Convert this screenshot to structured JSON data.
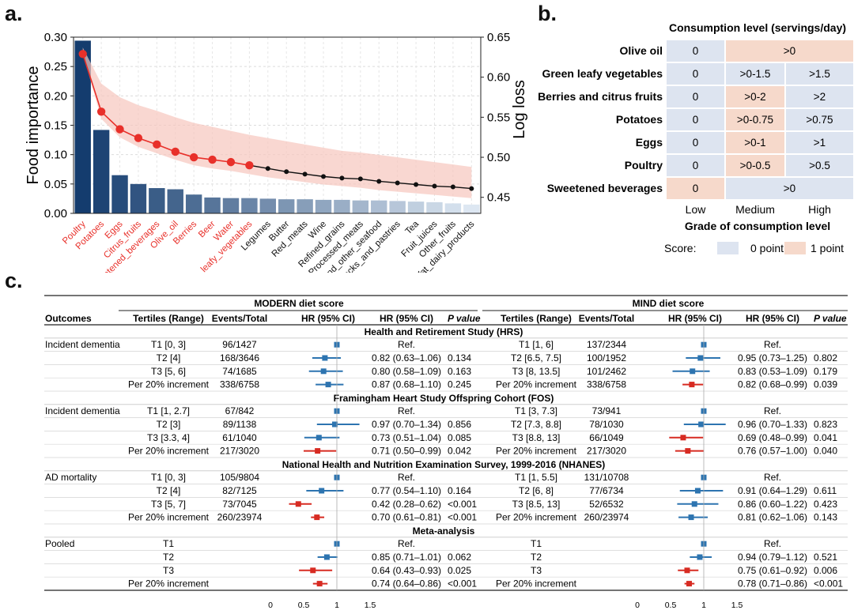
{
  "panel_labels": {
    "a": "a.",
    "b": "b.",
    "c": "c."
  },
  "chart_data": [
    {
      "type": "bar",
      "title": "",
      "ylabel": "Food importance",
      "y2label": "Log loss",
      "ylim": [
        0,
        0.3
      ],
      "y_ticks": [
        "0.00",
        "0.05",
        "0.10",
        "0.15",
        "0.20",
        "0.25",
        "0.30"
      ],
      "y2lim": [
        0.43,
        0.65
      ],
      "y2_ticks": [
        "0.45",
        "0.50",
        "0.55",
        "0.60",
        "0.65"
      ],
      "categories": [
        "Poultry",
        "Potatoes",
        "Eggs",
        "Citrus_fruits",
        "Sweetened_beverages",
        "Olive_oil",
        "Berries",
        "Beer",
        "Water",
        "Green_leafy_vegetables",
        "Legumes",
        "Butter",
        "Red_meats",
        "Wine",
        "Refined_grains",
        "Processed_meats",
        "Fish_and_other_seafood",
        "Snacks_and_pastries",
        "Tea",
        "Fruit_juices",
        "Other_fruits",
        "High-fat_dairy_products"
      ],
      "highlighted_count": 10,
      "values": [
        0.294,
        0.142,
        0.065,
        0.05,
        0.043,
        0.041,
        0.032,
        0.027,
        0.026,
        0.026,
        0.025,
        0.024,
        0.024,
        0.023,
        0.023,
        0.022,
        0.022,
        0.021,
        0.02,
        0.019,
        0.017,
        0.015
      ],
      "log_loss": [
        0.629,
        0.557,
        0.535,
        0.524,
        0.516,
        0.507,
        0.5,
        0.497,
        0.494,
        0.49,
        0.486,
        0.482,
        0.479,
        0.476,
        0.474,
        0.473,
        0.47,
        0.468,
        0.466,
        0.464,
        0.463,
        0.461
      ],
      "log_loss_ci": [
        [
          0.63,
          0.637
        ],
        [
          0.548,
          0.592
        ],
        [
          0.525,
          0.575
        ],
        [
          0.513,
          0.565
        ],
        [
          0.505,
          0.558
        ],
        [
          0.497,
          0.55
        ],
        [
          0.49,
          0.543
        ],
        [
          0.486,
          0.538
        ],
        [
          0.483,
          0.533
        ],
        [
          0.479,
          0.528
        ],
        [
          0.475,
          0.524
        ],
        [
          0.472,
          0.52
        ],
        [
          0.469,
          0.516
        ],
        [
          0.466,
          0.512
        ],
        [
          0.464,
          0.508
        ],
        [
          0.462,
          0.506
        ],
        [
          0.459,
          0.503
        ],
        [
          0.457,
          0.5
        ],
        [
          0.455,
          0.497
        ],
        [
          0.453,
          0.494
        ],
        [
          0.451,
          0.491
        ],
        [
          0.449,
          0.488
        ]
      ],
      "colors": {
        "highlight": "#e8302a",
        "band": "#f7c6bd",
        "line_tail": "#111111"
      }
    },
    {
      "type": "table",
      "title": "Consumption level (servings/day)",
      "xlabel": "Grade of consumption level",
      "column_labels": [
        "Low",
        "Medium",
        "High"
      ],
      "rows": [
        {
          "label": "Olive oil",
          "cells": [
            {
              "text": "0",
              "score": 0,
              "span": 1
            },
            {
              "text": ">0",
              "score": 1,
              "span": 2
            }
          ]
        },
        {
          "label": "Green leafy vegetables",
          "cells": [
            {
              "text": "0",
              "score": 0,
              "span": 1
            },
            {
              "text": ">0-1.5",
              "score": 0,
              "span": 1
            },
            {
              "text": ">1.5",
              "score": 0,
              "span": 1
            }
          ]
        },
        {
          "label": "Berries and citrus fruits",
          "cells": [
            {
              "text": "0",
              "score": 0,
              "span": 1
            },
            {
              "text": ">0-2",
              "score": 1,
              "span": 1
            },
            {
              "text": ">2",
              "score": 0,
              "span": 1
            }
          ]
        },
        {
          "label": "Potatoes",
          "cells": [
            {
              "text": "0",
              "score": 0,
              "span": 1
            },
            {
              "text": ">0-0.75",
              "score": 1,
              "span": 1
            },
            {
              "text": ">0.75",
              "score": 0,
              "span": 1
            }
          ]
        },
        {
          "label": "Eggs",
          "cells": [
            {
              "text": "0",
              "score": 0,
              "span": 1
            },
            {
              "text": ">0-1",
              "score": 1,
              "span": 1
            },
            {
              "text": ">1",
              "score": 0,
              "span": 1
            }
          ]
        },
        {
          "label": "Poultry",
          "cells": [
            {
              "text": "0",
              "score": 0,
              "span": 1
            },
            {
              "text": ">0-0.5",
              "score": 1,
              "span": 1
            },
            {
              "text": ">0.5",
              "score": 0,
              "span": 1
            }
          ]
        },
        {
          "label": "Sweetened beverages",
          "cells": [
            {
              "text": "0",
              "score": 1,
              "span": 1
            },
            {
              "text": ">0",
              "score": 0,
              "span": 2
            }
          ]
        }
      ],
      "legend": {
        "title": "Score:",
        "items": [
          {
            "label": "0 point",
            "color": "#dde4f0"
          },
          {
            "label": "1 point",
            "color": "#f6d9cb"
          }
        ]
      }
    },
    {
      "type": "table",
      "subtype": "forest",
      "x_ticks": [
        "0",
        "0.5",
        "1",
        "1.5"
      ],
      "x_domain": [
        0,
        1.5
      ],
      "colors": {
        "blue": "#2d74b0",
        "red": "#d72b22"
      },
      "groups": [
        {
          "name": "MODERN diet score",
          "columns": [
            "Tertiles (Range)",
            "Events/Total",
            "HR (95% CI)",
            "HR (95% CI)",
            "P value"
          ]
        },
        {
          "name": "MIND diet score",
          "columns": [
            "Tertiles (Range)",
            "Events/Total",
            "HR (95% CI)",
            "HR (95% CI)",
            "P value"
          ]
        }
      ],
      "outcomes_header": "Outcomes",
      "sections": [
        {
          "title": "Health and Retirement Study (HRS)",
          "rows": [
            {
              "outcome": "Incident dementia",
              "L": {
                "tertile": "T1 [0, 3]",
                "events": "96/1427",
                "hr_text": "Ref.",
                "p": "",
                "hr": 1,
                "lo": 1,
                "hi": 1,
                "sig": false
              },
              "R": {
                "tertile": "T1 [1, 6]",
                "events": "137/2344",
                "hr_text": "Ref.",
                "p": "",
                "hr": 1,
                "lo": 1,
                "hi": 1,
                "sig": false
              }
            },
            {
              "outcome": "",
              "L": {
                "tertile": "T2 [4]",
                "events": "168/3646",
                "hr_text": "0.82 (0.63–1.06)",
                "p": "0.134",
                "hr": 0.82,
                "lo": 0.63,
                "hi": 1.06,
                "sig": false
              },
              "R": {
                "tertile": "T2 [6.5, 7.5]",
                "events": "100/1952",
                "hr_text": "0.95 (0.73–1.25)",
                "p": "0.802",
                "hr": 0.95,
                "lo": 0.73,
                "hi": 1.25,
                "sig": false
              }
            },
            {
              "outcome": "",
              "L": {
                "tertile": "T3 [5, 6]",
                "events": "74/1685",
                "hr_text": "0.80 (0.58–1.09)",
                "p": "0.163",
                "hr": 0.8,
                "lo": 0.58,
                "hi": 1.09,
                "sig": false
              },
              "R": {
                "tertile": "T3 [8, 13.5]",
                "events": "101/2462",
                "hr_text": "0.83 (0.53–1.09)",
                "p": "0.179",
                "hr": 0.83,
                "lo": 0.53,
                "hi": 1.09,
                "sig": false
              }
            },
            {
              "outcome": "",
              "L": {
                "tertile": "Per 20% increment",
                "events": "338/6758",
                "hr_text": "0.87 (0.68–1.10)",
                "p": "0.245",
                "hr": 0.87,
                "lo": 0.68,
                "hi": 1.1,
                "sig": false
              },
              "R": {
                "tertile": "Per 20% increment",
                "events": "338/6758",
                "hr_text": "0.82 (0.68–0.99)",
                "p": "0.039",
                "hr": 0.82,
                "lo": 0.68,
                "hi": 0.99,
                "sig": true
              }
            }
          ]
        },
        {
          "title": "Framingham Heart Study Offspring Cohort (FOS)",
          "rows": [
            {
              "outcome": "Incident dementia",
              "L": {
                "tertile": "T1 [1, 2.7]",
                "events": "67/842",
                "hr_text": "Ref.",
                "p": "",
                "hr": 1,
                "lo": 1,
                "hi": 1,
                "sig": false
              },
              "R": {
                "tertile": "T1 [3, 7.3]",
                "events": "73/941",
                "hr_text": "Ref.",
                "p": "",
                "hr": 1,
                "lo": 1,
                "hi": 1,
                "sig": false
              }
            },
            {
              "outcome": "",
              "L": {
                "tertile": "T2 [3]",
                "events": "89/1138",
                "hr_text": "0.97 (0.70–1.34)",
                "p": "0.856",
                "hr": 0.97,
                "lo": 0.7,
                "hi": 1.34,
                "sig": false
              },
              "R": {
                "tertile": "T2 [7.3, 8.8]",
                "events": "78/1030",
                "hr_text": "0.96 (0.70–1.33)",
                "p": "0.823",
                "hr": 0.96,
                "lo": 0.7,
                "hi": 1.33,
                "sig": false
              }
            },
            {
              "outcome": "",
              "L": {
                "tertile": "T3 [3.3, 4]",
                "events": "61/1040",
                "hr_text": "0.73 (0.51–1.04)",
                "p": "0.085",
                "hr": 0.73,
                "lo": 0.51,
                "hi": 1.04,
                "sig": false
              },
              "R": {
                "tertile": "T3 [8.8, 13]",
                "events": "66/1049",
                "hr_text": "0.69 (0.48–0.99)",
                "p": "0.041",
                "hr": 0.69,
                "lo": 0.48,
                "hi": 0.99,
                "sig": true
              }
            },
            {
              "outcome": "",
              "L": {
                "tertile": "Per 20% increment",
                "events": "217/3020",
                "hr_text": "0.71 (0.50–0.99)",
                "p": "0.042",
                "hr": 0.71,
                "lo": 0.5,
                "hi": 0.99,
                "sig": true
              },
              "R": {
                "tertile": "Per 20% increment",
                "events": "217/3020",
                "hr_text": "0.76 (0.57–1.00)",
                "p": "0.040",
                "hr": 0.76,
                "lo": 0.57,
                "hi": 1.0,
                "sig": true
              }
            }
          ]
        },
        {
          "title": "National Health and Nutrition Examination Survey, 1999-2016 (NHANES)",
          "rows": [
            {
              "outcome": "AD mortality",
              "L": {
                "tertile": "T1 [0, 3]",
                "events": "105/9804",
                "hr_text": "Ref.",
                "p": "",
                "hr": 1,
                "lo": 1,
                "hi": 1,
                "sig": false
              },
              "R": {
                "tertile": "T1 [1, 5.5]",
                "events": "131/10708",
                "hr_text": "Ref.",
                "p": "",
                "hr": 1,
                "lo": 1,
                "hi": 1,
                "sig": false
              }
            },
            {
              "outcome": "",
              "L": {
                "tertile": "T2 [4]",
                "events": "82/7125",
                "hr_text": "0.77 (0.54–1.10)",
                "p": "0.164",
                "hr": 0.77,
                "lo": 0.54,
                "hi": 1.1,
                "sig": false
              },
              "R": {
                "tertile": "T2 [6, 8]",
                "events": "77/6734",
                "hr_text": "0.91 (0.64–1.29)",
                "p": "0.611",
                "hr": 0.91,
                "lo": 0.64,
                "hi": 1.29,
                "sig": false
              }
            },
            {
              "outcome": "",
              "L": {
                "tertile": "T3 [5, 7]",
                "events": "73/7045",
                "hr_text": "0.42 (0.28–0.62)",
                "p": "<0.001",
                "hr": 0.42,
                "lo": 0.28,
                "hi": 0.62,
                "sig": true
              },
              "R": {
                "tertile": "T3 [8.5, 13]",
                "events": "52/6532",
                "hr_text": "0.86 (0.60–1.22)",
                "p": "0.423",
                "hr": 0.86,
                "lo": 0.6,
                "hi": 1.22,
                "sig": false
              }
            },
            {
              "outcome": "",
              "L": {
                "tertile": "Per 20% increment",
                "events": "260/23974",
                "hr_text": "0.70 (0.61–0.81)",
                "p": "<0.001",
                "hr": 0.7,
                "lo": 0.61,
                "hi": 0.81,
                "sig": true
              },
              "R": {
                "tertile": "Per 20% increment",
                "events": "260/23974",
                "hr_text": "0.81 (0.62–1.06)",
                "p": "0.143",
                "hr": 0.81,
                "lo": 0.62,
                "hi": 1.06,
                "sig": false
              }
            }
          ]
        },
        {
          "title": "Meta-analysis",
          "rows": [
            {
              "outcome": "Pooled",
              "L": {
                "tertile": "T1",
                "events": "",
                "hr_text": "Ref.",
                "p": "",
                "hr": 1,
                "lo": 1,
                "hi": 1,
                "sig": false
              },
              "R": {
                "tertile": "T1",
                "events": "",
                "hr_text": "Ref.",
                "p": "",
                "hr": 1,
                "lo": 1,
                "hi": 1,
                "sig": false
              }
            },
            {
              "outcome": "",
              "L": {
                "tertile": "T2",
                "events": "",
                "hr_text": "0.85 (0.71–1.01)",
                "p": "0.062",
                "hr": 0.85,
                "lo": 0.71,
                "hi": 1.01,
                "sig": false
              },
              "R": {
                "tertile": "T2",
                "events": "",
                "hr_text": "0.94 (0.79–1.12)",
                "p": "0.521",
                "hr": 0.94,
                "lo": 0.79,
                "hi": 1.12,
                "sig": false
              }
            },
            {
              "outcome": "",
              "L": {
                "tertile": "T3",
                "events": "",
                "hr_text": "0.64 (0.43–0.93)",
                "p": "0.025",
                "hr": 0.64,
                "lo": 0.43,
                "hi": 0.93,
                "sig": true
              },
              "R": {
                "tertile": "T3",
                "events": "",
                "hr_text": "0.75 (0.61–0.92)",
                "p": "0.006",
                "hr": 0.75,
                "lo": 0.61,
                "hi": 0.92,
                "sig": true
              }
            },
            {
              "outcome": "",
              "L": {
                "tertile": "Per 20% increment",
                "events": "",
                "hr_text": "0.74 (0.64–0.86)",
                "p": "<0.001",
                "hr": 0.74,
                "lo": 0.64,
                "hi": 0.86,
                "sig": true
              },
              "R": {
                "tertile": "Per 20% increment",
                "events": "",
                "hr_text": "0.78 (0.71–0.86)",
                "p": "<0.001",
                "hr": 0.78,
                "lo": 0.71,
                "hi": 0.86,
                "sig": true
              }
            }
          ]
        }
      ]
    }
  ]
}
